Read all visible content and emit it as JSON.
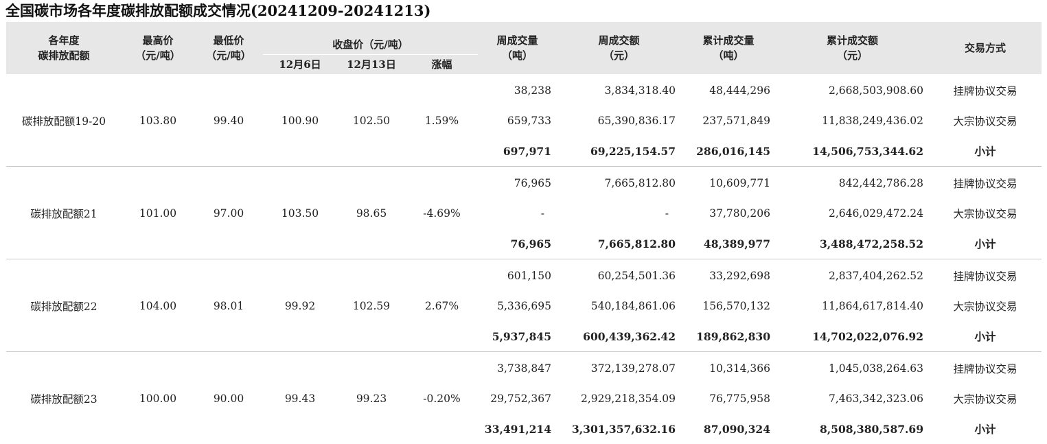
{
  "title": "全国碳市场各年度碳排放配额成交情况(20241209-20241213)",
  "headers": {
    "allowance_line1": "各年度",
    "allowance_line2": "碳排放配额",
    "high_line1": "最高价",
    "high_line2": "（元/吨）",
    "low_line1": "最低价",
    "low_line2": "（元/吨）",
    "close_group": "收盘价（元/吨）",
    "close_prev": "12月6日",
    "close_curr": "12月13日",
    "change": "涨幅",
    "week_volume_line1": "周成交量",
    "week_volume_line2": "（吨）",
    "week_amount_line1": "周成交额",
    "week_amount_line2": "（元）",
    "cum_volume_line1": "累计成交量",
    "cum_volume_line2": "（吨）",
    "cum_amount_line1": "累计成交额",
    "cum_amount_line2": "（元）",
    "method": "交易方式"
  },
  "groups": [
    {
      "name": "碳排放配额19-20",
      "high": "103.80",
      "low": "99.40",
      "close_prev": "100.90",
      "close_curr": "102.50",
      "change": "1.59%",
      "rows": [
        {
          "week_volume": "38,238",
          "week_amount": "3,834,318.40",
          "cum_volume": "48,444,296",
          "cum_amount": "2,668,503,908.60",
          "method": "挂牌协议交易"
        },
        {
          "week_volume": "659,733",
          "week_amount": "65,390,836.17",
          "cum_volume": "237,571,849",
          "cum_amount": "11,838,249,436.02",
          "method": "大宗协议交易"
        },
        {
          "week_volume": "697,971",
          "week_amount": "69,225,154.57",
          "cum_volume": "286,016,145",
          "cum_amount": "14,506,753,344.62",
          "method": "小计"
        }
      ]
    },
    {
      "name": "碳排放配额21",
      "high": "101.00",
      "low": "97.00",
      "close_prev": "103.50",
      "close_curr": "98.65",
      "change": "-4.69%",
      "rows": [
        {
          "week_volume": "76,965",
          "week_amount": "7,665,812.80",
          "cum_volume": "10,609,771",
          "cum_amount": "842,442,786.28",
          "method": "挂牌协议交易"
        },
        {
          "week_volume": "-",
          "week_amount": "-",
          "cum_volume": "37,780,206",
          "cum_amount": "2,646,029,472.24",
          "method": "大宗协议交易"
        },
        {
          "week_volume": "76,965",
          "week_amount": "7,665,812.80",
          "cum_volume": "48,389,977",
          "cum_amount": "3,488,472,258.52",
          "method": "小计"
        }
      ]
    },
    {
      "name": "碳排放配额22",
      "high": "104.00",
      "low": "98.01",
      "close_prev": "99.92",
      "close_curr": "102.59",
      "change": "2.67%",
      "rows": [
        {
          "week_volume": "601,150",
          "week_amount": "60,254,501.36",
          "cum_volume": "33,292,698",
          "cum_amount": "2,837,404,262.52",
          "method": "挂牌协议交易"
        },
        {
          "week_volume": "5,336,695",
          "week_amount": "540,184,861.06",
          "cum_volume": "156,570,132",
          "cum_amount": "11,864,617,814.40",
          "method": "大宗协议交易"
        },
        {
          "week_volume": "5,937,845",
          "week_amount": "600,439,362.42",
          "cum_volume": "189,862,830",
          "cum_amount": "14,702,022,076.92",
          "method": "小计"
        }
      ]
    },
    {
      "name": "碳排放配额23",
      "high": "100.00",
      "low": "90.00",
      "close_prev": "99.43",
      "close_curr": "99.23",
      "change": "-0.20%",
      "rows": [
        {
          "week_volume": "3,738,847",
          "week_amount": "372,139,278.07",
          "cum_volume": "10,314,366",
          "cum_amount": "1,045,038,264.63",
          "method": "挂牌协议交易"
        },
        {
          "week_volume": "29,752,367",
          "week_amount": "2,929,218,354.09",
          "cum_volume": "76,775,958",
          "cum_amount": "7,463,342,323.06",
          "method": "大宗协议交易"
        },
        {
          "week_volume": "33,491,214",
          "week_amount": "3,301,357,632.16",
          "cum_volume": "87,090,324",
          "cum_amount": "8,508,380,587.69",
          "method": "小计"
        }
      ]
    }
  ]
}
